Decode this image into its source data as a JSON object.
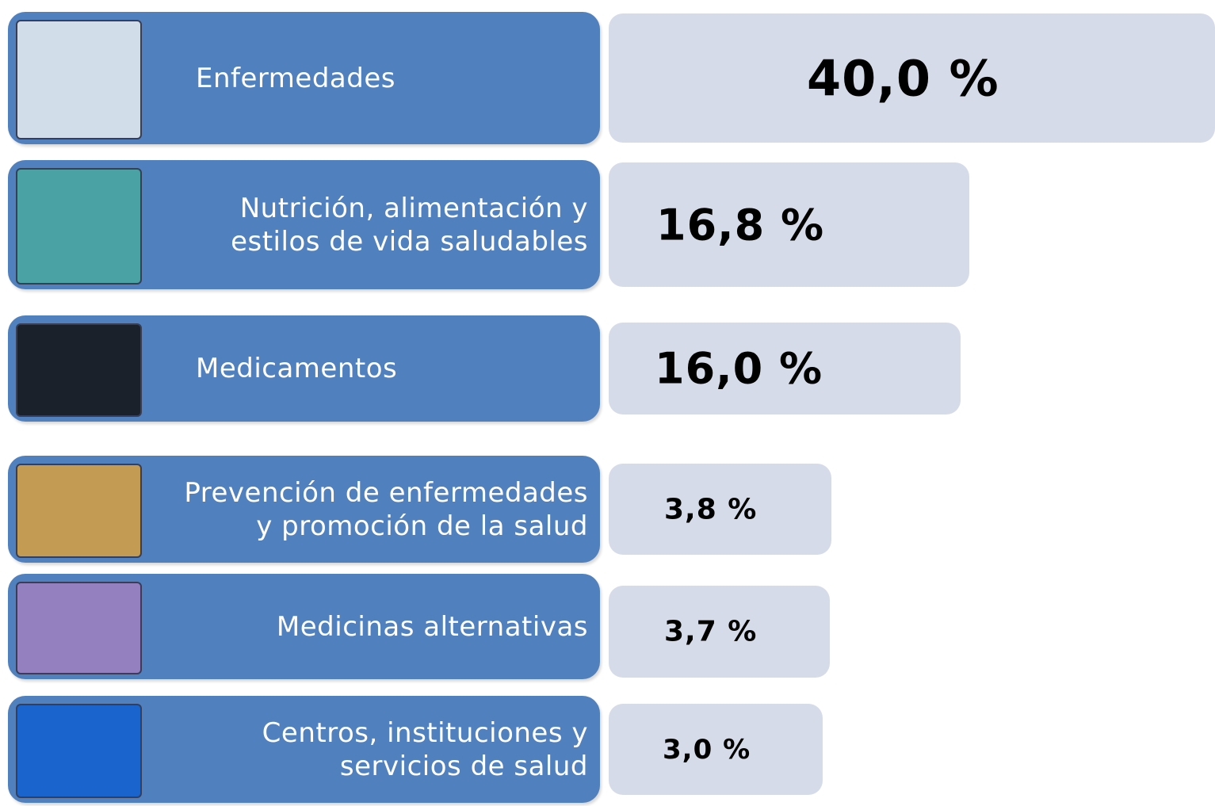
{
  "chart_data": {
    "type": "bar",
    "categories": [
      "Enfermedades",
      "Nutrición, alimentación y\nestilos de vida saludables",
      "Medicamentos",
      "Prevención de enfermedades\ny promoción de la salud",
      "Medicinas alternativas",
      "Centros, instituciones y\nservicios de salud"
    ],
    "values": [
      40.0,
      16.8,
      16.0,
      3.8,
      3.7,
      3.0
    ],
    "value_labels": [
      "40,0 %",
      "16,8 %",
      "16,0 %",
      "3,8 %",
      "3,7 %",
      "3,0 %"
    ],
    "color": "#d5dbe8"
  }
}
